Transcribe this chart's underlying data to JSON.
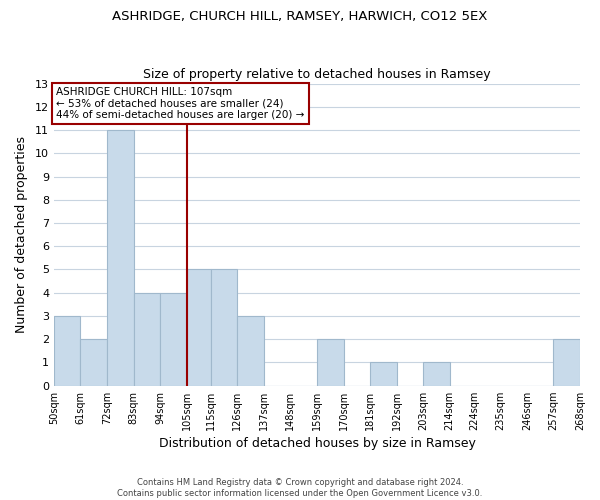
{
  "title1": "ASHRIDGE, CHURCH HILL, RAMSEY, HARWICH, CO12 5EX",
  "title2": "Size of property relative to detached houses in Ramsey",
  "xlabel": "Distribution of detached houses by size in Ramsey",
  "ylabel": "Number of detached properties",
  "bar_color": "#c8daea",
  "bar_edge_color": "#a0b8cc",
  "annotation_line_color": "#990000",
  "annotation_box_color": "#990000",
  "annotation_text_line1": "ASHRIDGE CHURCH HILL: 107sqm",
  "annotation_text_line2": "← 53% of detached houses are smaller (24)",
  "annotation_text_line3": "44% of semi-detached houses are larger (20) →",
  "footer1": "Contains HM Land Registry data © Crown copyright and database right 2024.",
  "footer2": "Contains public sector information licensed under the Open Government Licence v3.0.",
  "bin_edges": [
    50,
    61,
    72,
    83,
    94,
    105,
    115,
    126,
    137,
    148,
    159,
    170,
    181,
    192,
    203,
    214,
    224,
    235,
    246,
    257,
    268
  ],
  "bin_labels": [
    "50sqm",
    "61sqm",
    "72sqm",
    "83sqm",
    "94sqm",
    "105sqm",
    "115sqm",
    "126sqm",
    "137sqm",
    "148sqm",
    "159sqm",
    "170sqm",
    "181sqm",
    "192sqm",
    "203sqm",
    "214sqm",
    "224sqm",
    "235sqm",
    "246sqm",
    "257sqm",
    "268sqm"
  ],
  "counts": [
    3,
    2,
    11,
    4,
    4,
    5,
    5,
    3,
    0,
    0,
    2,
    0,
    1,
    0,
    1,
    0,
    0,
    0,
    0,
    2
  ],
  "ref_line_x": 105,
  "ylim": [
    0,
    13
  ],
  "yticks": [
    0,
    1,
    2,
    3,
    4,
    5,
    6,
    7,
    8,
    9,
    10,
    11,
    12,
    13
  ],
  "background_color": "#ffffff",
  "plot_bg_color": "#ffffff",
  "grid_color": "#c8d4e0"
}
